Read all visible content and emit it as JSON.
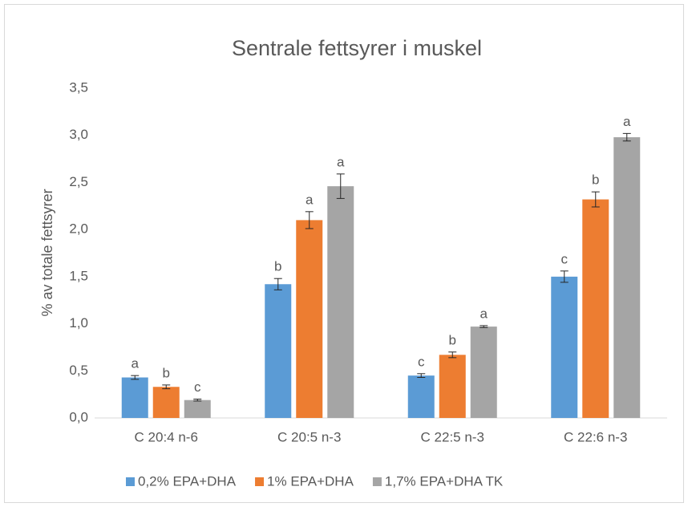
{
  "chart_data": {
    "type": "bar",
    "title": "Sentrale fettsyrer i muskel",
    "y_label": "% av totale fettsyrer",
    "categories": [
      "C 20:4 n-6",
      "C 20:5 n-3",
      "C 22:5 n-3",
      "C 22:6 n-3"
    ],
    "series": [
      {
        "name": "0,2% EPA+DHA",
        "color": "#5b9bd5",
        "values": [
          0.43,
          1.42,
          0.45,
          1.5
        ],
        "errors": [
          0.02,
          0.06,
          0.02,
          0.06
        ],
        "labels": [
          "a",
          "b",
          "c",
          "c"
        ]
      },
      {
        "name": "1% EPA+DHA",
        "color": "#ed7d31",
        "values": [
          0.33,
          2.1,
          0.67,
          2.32
        ],
        "errors": [
          0.02,
          0.09,
          0.03,
          0.08
        ],
        "labels": [
          "b",
          "a",
          "b",
          "b"
        ]
      },
      {
        "name": "1,7% EPA+DHA TK",
        "color": "#a5a5a5",
        "values": [
          0.19,
          2.46,
          0.97,
          2.98
        ],
        "errors": [
          0.01,
          0.13,
          0.01,
          0.04
        ],
        "labels": [
          "c",
          "a",
          "a",
          "a"
        ]
      }
    ],
    "ylim": [
      0,
      3.5
    ],
    "yticks": [
      {
        "value": 0,
        "label": "0,0"
      },
      {
        "value": 0.5,
        "label": "0,5"
      },
      {
        "value": 1,
        "label": "1,0"
      },
      {
        "value": 1.5,
        "label": "1,5"
      },
      {
        "value": 2,
        "label": "2,0"
      },
      {
        "value": 2.5,
        "label": "2,5"
      },
      {
        "value": 3,
        "label": "3,0"
      },
      {
        "value": 3.5,
        "label": "3,5"
      }
    ],
    "grid": false,
    "legend": "bottom"
  }
}
